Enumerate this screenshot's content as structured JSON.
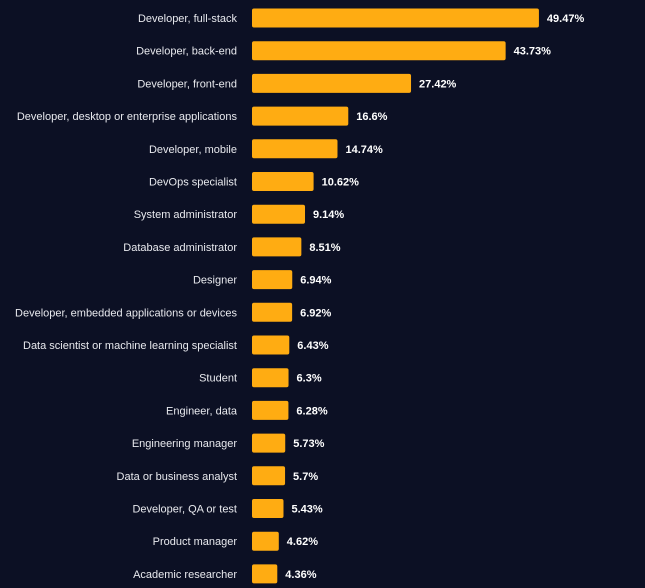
{
  "chart_data": {
    "type": "bar",
    "orientation": "horizontal",
    "categories": [
      "Developer, full-stack",
      "Developer, back-end",
      "Developer, front-end",
      "Developer, desktop or enterprise applications",
      "Developer, mobile",
      "DevOps specialist",
      "System administrator",
      "Database administrator",
      "Designer",
      "Developer, embedded applications or devices",
      "Data scientist or machine learning specialist",
      "Student",
      "Engineer, data",
      "Engineering manager",
      "Data or business analyst",
      "Developer, QA or test",
      "Product manager",
      "Academic researcher"
    ],
    "values": [
      49.47,
      43.73,
      27.42,
      16.6,
      14.74,
      10.62,
      9.14,
      8.51,
      6.94,
      6.92,
      6.43,
      6.3,
      6.28,
      5.73,
      5.7,
      5.43,
      4.62,
      4.36
    ],
    "value_labels": [
      "49.47%",
      "43.73%",
      "27.42%",
      "16.6%",
      "14.74%",
      "10.62%",
      "9.14%",
      "8.51%",
      "6.94%",
      "6.92%",
      "6.43%",
      "6.3%",
      "6.28%",
      "5.73%",
      "5.7%",
      "5.43%",
      "4.62%",
      "4.36%"
    ],
    "bar_color": "#ffac12",
    "background_color": "#0c1024",
    "label_color": "#e8e9ee",
    "value_label_color": "#ffffff",
    "grid": false,
    "legend": "none"
  }
}
